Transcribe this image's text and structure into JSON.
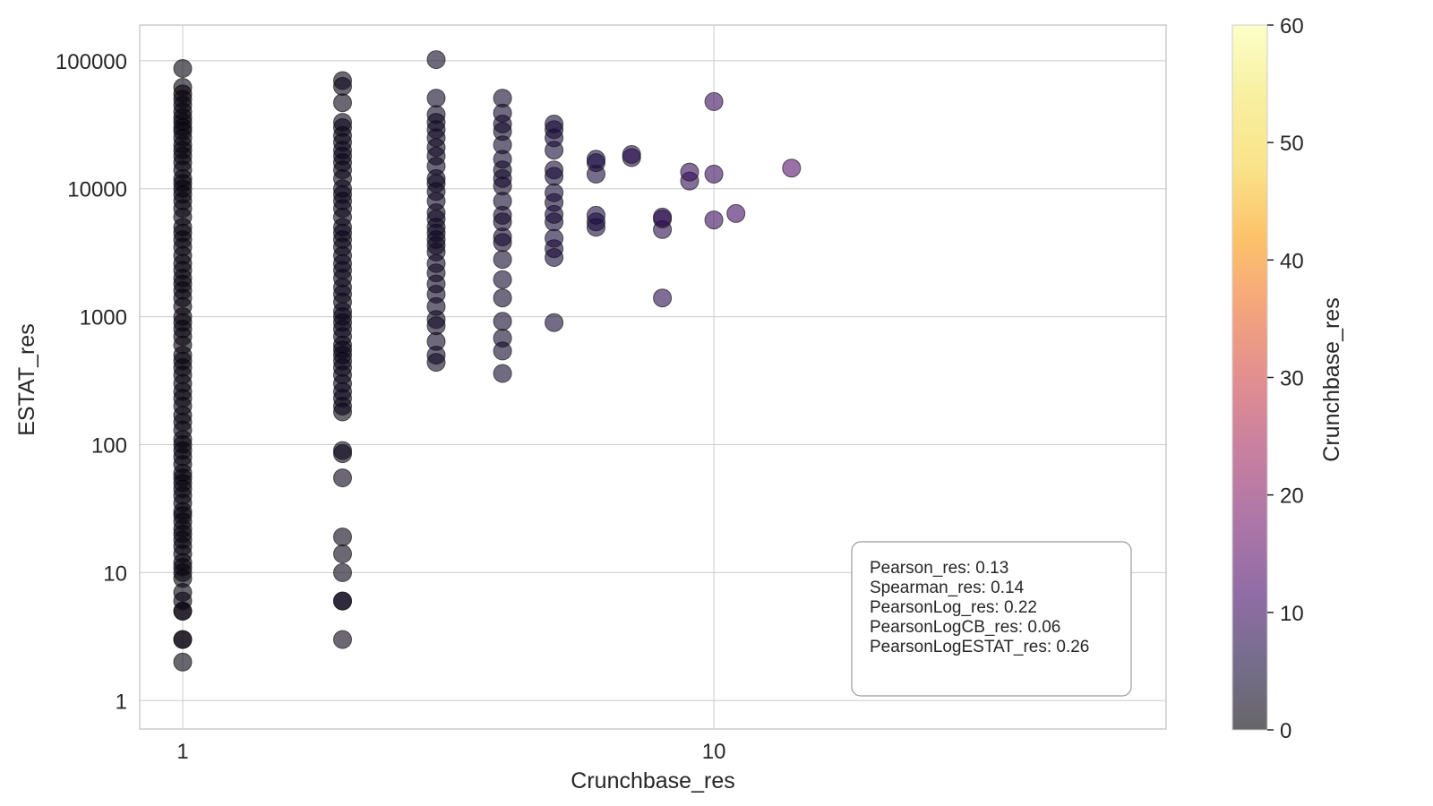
{
  "chart_data": {
    "type": "scatter",
    "xlabel": "Crunchbase_res",
    "ylabel": "ESTAT_res",
    "x_scale": "log",
    "y_scale": "log",
    "xlim": [
      0.83,
      71
    ],
    "ylim": [
      0.6,
      190000
    ],
    "x_ticks": [
      1,
      10
    ],
    "x_tick_labels": [
      "1",
      "10"
    ],
    "y_ticks": [
      1,
      10,
      100,
      1000,
      10000,
      100000
    ],
    "y_tick_labels": [
      "1",
      "10",
      "100",
      "1000",
      "10000",
      "100000"
    ],
    "grid": true,
    "colorbar": {
      "label": "Crunchbase_res",
      "range": [
        0,
        60
      ],
      "ticks": [
        0,
        10,
        20,
        30,
        40,
        50,
        60
      ],
      "tick_labels": [
        "0",
        "10",
        "20",
        "30",
        "40",
        "50",
        "60"
      ],
      "colormap": "inferno"
    },
    "stats_box": {
      "placement": "lower-right",
      "lines": [
        "Pearson_res: 0.13",
        "Spearman_res: 0.14",
        "PearsonLog_res: 0.22",
        "PearsonLogCB_res: 0.06",
        "PearsonLogESTAT_res: 0.26"
      ]
    },
    "series": [
      {
        "x": 1,
        "y": [
          2,
          3,
          3,
          5,
          5,
          6,
          7,
          9,
          10,
          11,
          12,
          14,
          16,
          18,
          20,
          22,
          25,
          28,
          30,
          35,
          40,
          45,
          50,
          55,
          60,
          70,
          80,
          90,
          100,
          110,
          130,
          150,
          170,
          200,
          230,
          260,
          300,
          350,
          400,
          450,
          500,
          600,
          700,
          800,
          900,
          1000,
          1200,
          1400,
          1600,
          1800,
          2000,
          2300,
          2600,
          3000,
          3500,
          4000,
          4500,
          5000,
          6000,
          7000,
          8000,
          9000,
          10000,
          11000,
          12000,
          14000,
          16000,
          18000,
          20000,
          22000,
          25000,
          28000,
          30000,
          33000,
          36000,
          40000,
          45000,
          50000,
          55000,
          62000,
          87000
        ]
      },
      {
        "x": 2,
        "y": [
          3,
          6,
          6,
          10,
          14,
          19,
          55,
          85,
          90,
          180,
          200,
          230,
          260,
          300,
          350,
          400,
          450,
          500,
          550,
          600,
          700,
          800,
          900,
          1000,
          1100,
          1300,
          1500,
          1700,
          2000,
          2300,
          2600,
          3000,
          3500,
          4000,
          4500,
          5000,
          6000,
          7000,
          8000,
          9000,
          10000,
          12000,
          14000,
          16000,
          18000,
          20000,
          23000,
          26000,
          30000,
          33000,
          47000,
          63000,
          70000
        ]
      },
      {
        "x": 3,
        "y": [
          440,
          500,
          640,
          850,
          950,
          1200,
          1500,
          1800,
          2200,
          2600,
          3200,
          3600,
          4000,
          4500,
          5000,
          5800,
          6500,
          8000,
          9500,
          11000,
          12000,
          15000,
          18000,
          21000,
          25000,
          29000,
          33000,
          38000,
          51000,
          102000
        ]
      },
      {
        "x": 4,
        "y": [
          360,
          540,
          680,
          920,
          1400,
          1950,
          2800,
          3800,
          4200,
          5500,
          6200,
          8000,
          10500,
          12000,
          14000,
          17000,
          22000,
          28000,
          32000,
          39000,
          51000
        ]
      },
      {
        "x": 5,
        "y": [
          900,
          2900,
          3400,
          4100,
          5500,
          6300,
          7800,
          9300,
          12500,
          14000,
          20000,
          25000,
          29000,
          32000
        ]
      },
      {
        "x": 6,
        "y": [
          5000,
          5500,
          6200,
          13000,
          16000,
          17000
        ]
      },
      {
        "x": 7,
        "y": [
          17500,
          18500
        ]
      },
      {
        "x": 8,
        "y": [
          1400,
          4800,
          5800,
          6000
        ]
      },
      {
        "x": 9,
        "y": [
          11500,
          13500
        ]
      },
      {
        "x": 10,
        "y": [
          5700,
          13000,
          48000
        ]
      },
      {
        "x": 11,
        "y": [
          6400
        ]
      },
      {
        "x": 14,
        "y": [
          14500
        ]
      }
    ]
  }
}
